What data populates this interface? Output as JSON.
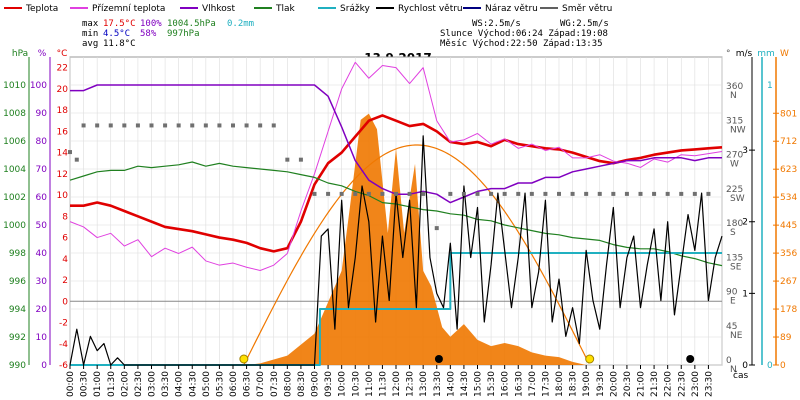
{
  "legend": [
    {
      "label": "Teplota",
      "color": "#e00000"
    },
    {
      "label": "Přízemní teplota",
      "color": "#e040e0"
    },
    {
      "label": "Vlhkost",
      "color": "#8000c0"
    },
    {
      "label": "Tlak",
      "color": "#208020"
    },
    {
      "label": "Srážky",
      "color": "#20b0c0"
    },
    {
      "label": "Rychlost větru",
      "color": "#000000"
    },
    {
      "label": "Náraz větru",
      "color": "#000080"
    },
    {
      "label": "Směr větru",
      "color": "#606060"
    }
  ],
  "stats": {
    "max_label": "max",
    "max_temp": "17.5°C",
    "max_hum": "100%",
    "max_press": "1004.5hPa",
    "max_rain": "0.2mm",
    "min_label": "min",
    "min_temp": "4.5°C",
    "min_hum": "58%",
    "min_press": "997hPa",
    "avg_label": "avg",
    "avg_temp": "11.8°C",
    "ws": "WS:2.5m/s",
    "wg": "WG:2.5m/s",
    "sun": "Slunce Východ:06:24  Západ:19:08",
    "moon": "Měsíc  Východ:22:50  Západ:13:35"
  },
  "colors": {
    "temp": "#e00000",
    "ground": "#e040e0",
    "hum": "#8000c0",
    "press": "#208020",
    "rain": "#20b0c0",
    "wind": "#000000",
    "gust": "#000080",
    "dir": "#707070",
    "solar": "#f07800",
    "solar_fill": "#f07800",
    "grid": "#dddddd"
  },
  "chart_data": {
    "type": "line",
    "title": "13.9.2017",
    "x_unit_label": "čas",
    "x_ticks": [
      "00:00",
      "00:30",
      "01:00",
      "01:30",
      "02:00",
      "02:30",
      "03:00",
      "03:30",
      "04:00",
      "04:30",
      "05:00",
      "05:30",
      "06:00",
      "06:30",
      "07:00",
      "07:30",
      "08:00",
      "08:30",
      "09:00",
      "09:30",
      "10:00",
      "10:30",
      "11:00",
      "11:30",
      "12:00",
      "12:30",
      "13:00",
      "13:30",
      "14:00",
      "14:30",
      "15:00",
      "15:30",
      "16:00",
      "16:30",
      "17:00",
      "17:30",
      "18:00",
      "18:30",
      "19:00",
      "19:30",
      "20:00",
      "20:30",
      "21:00",
      "21:30",
      "22:00",
      "22:30",
      "23:00",
      "23:30"
    ],
    "axes": {
      "hpa": {
        "label": "hPa",
        "ticks": [
          990,
          992,
          994,
          996,
          998,
          1000,
          1002,
          1004,
          1006,
          1008,
          1010
        ],
        "range": [
          990,
          1012
        ]
      },
      "pct": {
        "label": "%",
        "ticks": [
          0,
          10,
          20,
          30,
          40,
          50,
          60,
          70,
          80,
          90,
          100
        ],
        "range": [
          0,
          110
        ]
      },
      "temp": {
        "label": "°C",
        "ticks": [
          -6,
          -4,
          -2,
          0,
          2,
          4,
          6,
          8,
          10,
          12,
          14,
          16,
          18,
          20,
          22
        ],
        "range": [
          -6,
          23
        ]
      },
      "dir": {
        "label": "°",
        "ticks": [
          {
            "v": "0",
            "d": "N"
          },
          {
            "v": "45",
            "d": "NE"
          },
          {
            "v": "90",
            "d": "E"
          },
          {
            "v": "135",
            "d": "SE"
          },
          {
            "v": "180",
            "d": "S"
          },
          {
            "v": "225",
            "d": "SW"
          },
          {
            "v": "270",
            "d": "W"
          },
          {
            "v": "315",
            "d": "NW"
          },
          {
            "v": "360",
            "d": "N"
          }
        ],
        "range": [
          0,
          405
        ]
      },
      "ms": {
        "label": "m/s",
        "ticks": [
          0,
          1,
          2,
          3
        ],
        "range": [
          0,
          4.3
        ]
      },
      "mm": {
        "label": "mm",
        "ticks": [
          0,
          1
        ],
        "range": [
          0,
          1.1
        ]
      },
      "w": {
        "label": "W",
        "ticks": [
          0,
          89,
          178,
          267,
          356,
          445,
          534,
          623,
          712,
          801
        ],
        "range": [
          0,
          980
        ]
      }
    },
    "series": [
      {
        "name": "Teplota",
        "axis": "temp",
        "x": [
          0,
          0.5,
          1,
          1.5,
          2,
          2.5,
          3,
          3.5,
          4,
          4.5,
          5,
          5.5,
          6,
          6.5,
          7,
          7.5,
          8,
          8.5,
          9,
          9.5,
          10,
          10.5,
          11,
          11.5,
          12,
          12.5,
          13,
          13.5,
          14,
          14.5,
          15,
          15.5,
          16,
          16.5,
          17,
          17.5,
          18,
          18.5,
          19,
          19.5,
          20,
          20.5,
          21,
          21.5,
          22,
          22.5,
          23,
          23.5,
          24
        ],
        "values": [
          9,
          9,
          9.3,
          9,
          8.5,
          8,
          7.5,
          7,
          6.8,
          6.6,
          6.3,
          6,
          5.8,
          5.5,
          5,
          4.7,
          5,
          7.5,
          11,
          13,
          14,
          15.5,
          17,
          17.5,
          17,
          16.5,
          16.7,
          16,
          15,
          14.8,
          15,
          14.6,
          15.2,
          14.8,
          14.6,
          14.4,
          14.3,
          14,
          13.6,
          13.2,
          13,
          13.3,
          13.5,
          13.8,
          14,
          14.2,
          14.3,
          14.4,
          14.5
        ]
      },
      {
        "name": "Přízemní teplota",
        "axis": "temp",
        "x": [
          0,
          0.5,
          1,
          1.5,
          2,
          2.5,
          3,
          3.5,
          4,
          4.5,
          5,
          5.5,
          6,
          6.5,
          7,
          7.5,
          8,
          8.5,
          9,
          9.5,
          10,
          10.5,
          11,
          11.5,
          12,
          12.5,
          13,
          13.5,
          14,
          14.5,
          15,
          15.5,
          16,
          16.5,
          17,
          17.5,
          18,
          18.5,
          19,
          19.5,
          20,
          20.5,
          21,
          21.5,
          22,
          22.5,
          23,
          23.5,
          24
        ],
        "values": [
          7.5,
          7,
          6,
          6.4,
          5.2,
          5.8,
          4.2,
          5,
          4.5,
          5.1,
          3.8,
          3.4,
          3.6,
          3.2,
          2.9,
          3.4,
          4.5,
          8.5,
          12,
          16,
          20,
          22.5,
          21,
          22.2,
          22,
          20.5,
          22,
          17,
          15,
          15.2,
          15.8,
          14.8,
          15.3,
          14.4,
          14.8,
          14.2,
          14.5,
          13.5,
          13.5,
          13.8,
          13.2,
          13,
          12.6,
          13.4,
          13.1,
          13.8,
          13.7,
          13.9,
          14.1
        ]
      },
      {
        "name": "Vlhkost",
        "axis": "pct",
        "x": [
          0,
          0.5,
          1,
          1.5,
          2,
          2.5,
          3,
          3.5,
          4,
          4.5,
          5,
          5.5,
          6,
          6.5,
          7,
          7.5,
          8,
          8.5,
          9,
          9.5,
          10,
          10.5,
          11,
          11.5,
          12,
          12.5,
          13,
          13.5,
          14,
          14.5,
          15,
          15.5,
          16,
          16.5,
          17,
          17.5,
          18,
          18.5,
          19,
          19.5,
          20,
          20.5,
          21,
          21.5,
          22,
          22.5,
          23,
          23.5,
          24
        ],
        "values": [
          98,
          98,
          100,
          100,
          100,
          100,
          100,
          100,
          100,
          100,
          100,
          100,
          100,
          100,
          100,
          100,
          100,
          100,
          100,
          96,
          85,
          73,
          66,
          63,
          61,
          61,
          62,
          61,
          58,
          60,
          62,
          63,
          63,
          65,
          65,
          67,
          67,
          69,
          70,
          71,
          72,
          73,
          73,
          74,
          74,
          74,
          73,
          74,
          74
        ]
      },
      {
        "name": "Tlak",
        "axis": "hpa",
        "x": [
          0,
          0.5,
          1,
          1.5,
          2,
          2.5,
          3,
          3.5,
          4,
          4.5,
          5,
          5.5,
          6,
          6.5,
          7,
          7.5,
          8,
          8.5,
          9,
          9.5,
          10,
          10.5,
          11,
          11.5,
          12,
          12.5,
          13,
          13.5,
          14,
          14.5,
          15,
          15.5,
          16,
          16.5,
          17,
          17.5,
          18,
          18.5,
          19,
          19.5,
          20,
          20.5,
          21,
          21.5,
          22,
          22.5,
          23,
          23.5,
          24
        ],
        "values": [
          1003.2,
          1003.5,
          1003.8,
          1003.9,
          1003.9,
          1004.2,
          1004.1,
          1004.2,
          1004.3,
          1004.5,
          1004.2,
          1004.4,
          1004.2,
          1004.1,
          1004,
          1003.9,
          1003.8,
          1003.6,
          1003.4,
          1003,
          1002.8,
          1002.4,
          1002.1,
          1001.6,
          1001.5,
          1001.3,
          1001.1,
          1001,
          1000.8,
          1000.7,
          1000.4,
          1000.3,
          1000,
          999.8,
          999.6,
          999.4,
          999.3,
          999.1,
          999,
          998.9,
          998.6,
          998.4,
          998.3,
          998.3,
          998.1,
          997.8,
          997.6,
          997.3,
          997.1
        ]
      },
      {
        "name": "Srážky",
        "axis": "mm",
        "x": [
          0,
          9,
          9.2,
          13.5,
          13.8,
          14,
          24
        ],
        "values": [
          0,
          0,
          0.2,
          0.2,
          0.2,
          0.4,
          0.4
        ]
      },
      {
        "name": "Rychlost větru",
        "axis": "ms",
        "x": [
          0,
          0.25,
          0.5,
          0.75,
          1,
          1.25,
          1.5,
          1.75,
          2,
          2.5,
          3,
          3.5,
          4,
          4.5,
          5,
          5.5,
          6,
          6.5,
          7,
          7.5,
          8,
          8.5,
          9,
          9.25,
          9.5,
          9.75,
          10,
          10.25,
          10.5,
          10.75,
          11,
          11.25,
          11.5,
          11.75,
          12,
          12.25,
          12.5,
          12.75,
          13,
          13.25,
          13.5,
          13.75,
          14,
          14.25,
          14.5,
          14.75,
          15,
          15.25,
          15.5,
          15.75,
          16,
          16.25,
          16.5,
          16.75,
          17,
          17.25,
          17.5,
          17.75,
          18,
          18.25,
          18.5,
          18.75,
          19,
          19.25,
          19.5,
          19.75,
          20,
          20.25,
          20.5,
          20.75,
          21,
          21.25,
          21.5,
          21.75,
          22,
          22.25,
          22.5,
          22.75,
          23,
          23.25,
          23.5,
          23.75,
          24
        ],
        "values": [
          0,
          0.5,
          0,
          0.4,
          0.2,
          0.3,
          0,
          0.1,
          0,
          0,
          0,
          0,
          0,
          0,
          0,
          0,
          0,
          0,
          0,
          0,
          0,
          0,
          0,
          1.8,
          1.9,
          0.5,
          2.3,
          0.8,
          1.5,
          2.5,
          2,
          0.6,
          1.8,
          0.9,
          2.4,
          1.5,
          2.3,
          0.8,
          3.2,
          1.5,
          1,
          0.8,
          1.7,
          0.5,
          2.5,
          1.5,
          2.2,
          0.6,
          1.4,
          2.4,
          1.6,
          0.8,
          1.5,
          2.4,
          0.8,
          1.3,
          2.3,
          0.6,
          1.2,
          0.4,
          0.8,
          0.3,
          1.6,
          0.9,
          0.5,
          1.4,
          2.2,
          0.8,
          1.5,
          1.8,
          0.8,
          1.4,
          1.9,
          0.9,
          2,
          0.7,
          1.4,
          2.1,
          1.6,
          2.4,
          0.9,
          1.5,
          1.8
        ]
      },
      {
        "name": "Směr větru",
        "axis": "dir",
        "x": [
          0,
          0.25,
          0.5,
          1,
          1.5,
          2,
          2.5,
          3,
          3.5,
          4,
          4.5,
          5,
          5.5,
          6,
          6.5,
          7,
          7.5,
          8,
          8.5,
          9,
          9.5,
          10,
          10.5,
          11,
          11.5,
          12,
          12.5,
          13,
          13.5,
          14,
          14.5,
          15,
          15.5,
          16,
          16.5,
          17,
          17.5,
          18,
          18.5,
          19,
          19.5,
          20,
          20.5,
          21,
          21.5,
          22,
          22.5,
          23,
          23.5
        ],
        "values": [
          280,
          270,
          315,
          315,
          315,
          315,
          315,
          315,
          315,
          315,
          315,
          315,
          315,
          315,
          315,
          315,
          315,
          270,
          270,
          225,
          225,
          225,
          225,
          225,
          225,
          225,
          225,
          225,
          180,
          225,
          225,
          225,
          225,
          225,
          225,
          225,
          225,
          225,
          225,
          225,
          225,
          225,
          225,
          225,
          225,
          225,
          225,
          225,
          225
        ]
      },
      {
        "name": "Solar",
        "axis": "w",
        "x": [
          6.5,
          7,
          8,
          9,
          10,
          10.3,
          10.7,
          11,
          11.3,
          11.7,
          12,
          12.3,
          12.7,
          13,
          13.3,
          13.7,
          14,
          14.5,
          15,
          15.5,
          16,
          16.5,
          17,
          17.5,
          18,
          18.5,
          19
        ],
        "values": [
          0,
          5,
          30,
          100,
          300,
          500,
          780,
          800,
          750,
          420,
          690,
          420,
          640,
          300,
          250,
          120,
          90,
          130,
          80,
          60,
          70,
          60,
          40,
          30,
          25,
          10,
          0
        ]
      }
    ]
  }
}
